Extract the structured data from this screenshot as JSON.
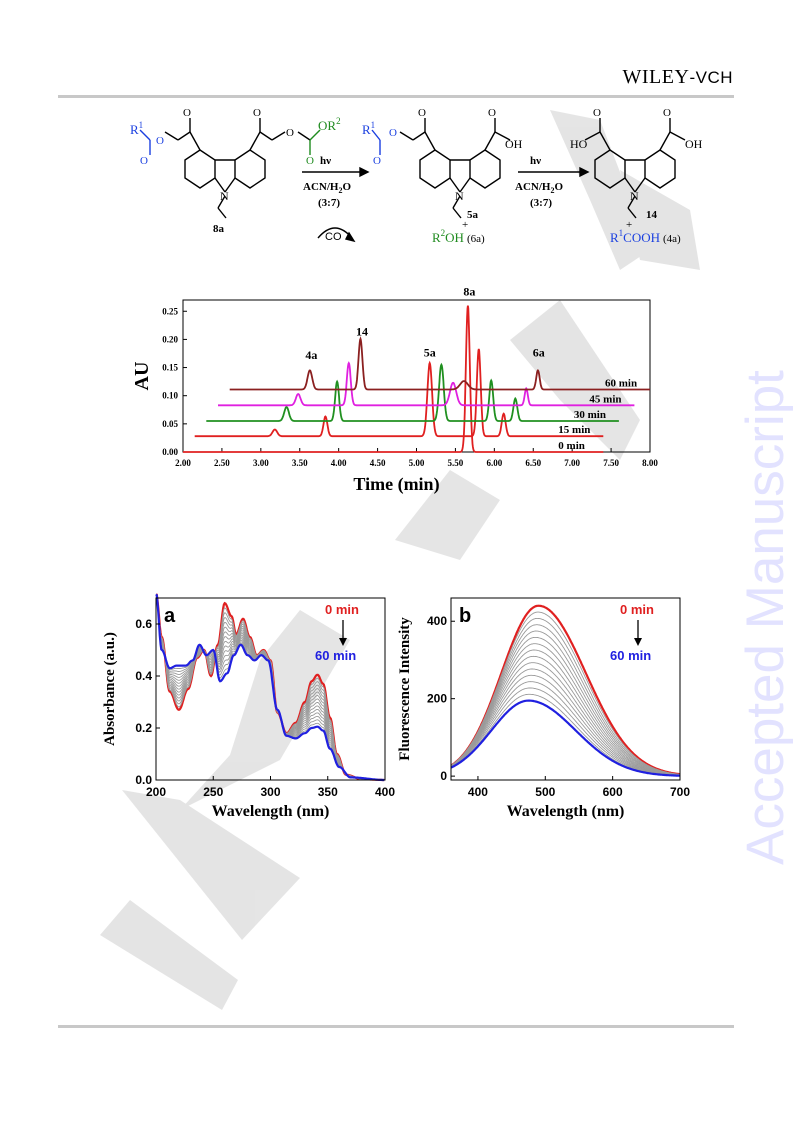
{
  "header": {
    "brand_main": "WILEY",
    "brand_sub": "-VCH"
  },
  "watermark": {
    "side_text": "Accepted Manuscript"
  },
  "scheme": {
    "compound_start": "8a",
    "compound_mid": "5a",
    "compound_end": "14",
    "r1": "R",
    "r1_sup": "1",
    "or2": "OR",
    "or2_sup": "2",
    "oh": "OH",
    "ho": "HO",
    "n_label": "N",
    "arrow1_top": "hν",
    "arrow1_solvent": "ACN/H",
    "arrow1_solvent_sub": "2",
    "arrow1_solvent_end": "O",
    "arrow1_ratio": "(3:7)",
    "co2": "CO",
    "co2_sub": "2",
    "byproduct1_r": "R",
    "byproduct1_sup": "2",
    "byproduct1": "OH",
    "byproduct1_id": "(6a)",
    "arrow2_top": "hν",
    "arrow2_solvent": "ACN/H",
    "arrow2_solvent_sub": "2",
    "arrow2_solvent_end": "O",
    "arrow2_ratio": "(3:7)",
    "byproduct2_r": "R",
    "byproduct2_sup": "1",
    "byproduct2": "COOH",
    "byproduct2_id": "(4a)",
    "plus": "+"
  },
  "chart_data": [
    {
      "type": "line",
      "ylabel": "AU",
      "xlabel": "Time (min)",
      "xlim": [
        2.0,
        8.0
      ],
      "ylim": [
        0.0,
        0.27
      ],
      "xticks": [
        "2.00",
        "2.50",
        "3.00",
        "3.50",
        "4.00",
        "4.50",
        "5.00",
        "5.50",
        "6.00",
        "6.50",
        "7.00",
        "7.50",
        "8.00"
      ],
      "yticks": [
        "0.00",
        "0.05",
        "0.10",
        "0.15",
        "0.20",
        "0.25"
      ],
      "peak_labels": [
        {
          "text": "4a",
          "x": 3.65,
          "y": 0.165
        },
        {
          "text": "14",
          "x": 4.3,
          "y": 0.207
        },
        {
          "text": "5a",
          "x": 5.17,
          "y": 0.17
        },
        {
          "text": "8a",
          "x": 5.68,
          "y": 0.278
        },
        {
          "text": "6a",
          "x": 6.57,
          "y": 0.17
        }
      ],
      "series": [
        {
          "name": "0 min",
          "color": "#e02020",
          "offset": 0.0,
          "x0": 2.0,
          "x1": 7.4,
          "peaks": [
            {
              "x": 5.66,
              "h": 0.26,
              "w": 0.025
            }
          ]
        },
        {
          "name": "15 min",
          "color": "#e02020",
          "offset": 0.028,
          "x0": 2.15,
          "x1": 7.4,
          "peaks": [
            {
              "x": 3.18,
              "h": 0.012,
              "w": 0.03
            },
            {
              "x": 3.83,
              "h": 0.035,
              "w": 0.025
            },
            {
              "x": 5.17,
              "h": 0.13,
              "w": 0.03
            },
            {
              "x": 5.8,
              "h": 0.155,
              "w": 0.025
            },
            {
              "x": 6.12,
              "h": 0.04,
              "w": 0.025
            }
          ]
        },
        {
          "name": "30 min",
          "color": "#209020",
          "offset": 0.055,
          "x0": 2.3,
          "x1": 7.6,
          "peaks": [
            {
              "x": 3.33,
              "h": 0.025,
              "w": 0.03
            },
            {
              "x": 3.98,
              "h": 0.07,
              "w": 0.025
            },
            {
              "x": 5.32,
              "h": 0.1,
              "w": 0.03
            },
            {
              "x": 5.96,
              "h": 0.072,
              "w": 0.025
            },
            {
              "x": 6.27,
              "h": 0.04,
              "w": 0.025
            }
          ]
        },
        {
          "name": "45 min",
          "color": "#e020e0",
          "offset": 0.083,
          "x0": 2.45,
          "x1": 7.8,
          "peaks": [
            {
              "x": 3.48,
              "h": 0.02,
              "w": 0.03
            },
            {
              "x": 4.13,
              "h": 0.075,
              "w": 0.025
            },
            {
              "x": 5.47,
              "h": 0.04,
              "w": 0.04
            },
            {
              "x": 6.41,
              "h": 0.03,
              "w": 0.02
            }
          ]
        },
        {
          "name": "60 min",
          "color": "#8b2020",
          "offset": 0.111,
          "x0": 2.6,
          "x1": 8.0,
          "peaks": [
            {
              "x": 3.63,
              "h": 0.034,
              "w": 0.03
            },
            {
              "x": 4.28,
              "h": 0.09,
              "w": 0.025
            },
            {
              "x": 5.61,
              "h": 0.015,
              "w": 0.05
            },
            {
              "x": 6.56,
              "h": 0.034,
              "w": 0.022
            }
          ]
        }
      ]
    },
    {
      "type": "line",
      "panel": "a",
      "xlabel": "Wavelength (nm)",
      "ylabel": "Absorbance (a.u.)",
      "xlim": [
        200,
        400
      ],
      "ylim": [
        0.0,
        0.7
      ],
      "xticks": [
        "200",
        "250",
        "300",
        "350",
        "400"
      ],
      "yticks": [
        "0.0",
        "0.2",
        "0.4",
        "0.6"
      ],
      "legend_start": "0 min",
      "legend_end": "60 min",
      "start_color": "#e02020",
      "end_color": "#2020e0",
      "n_intermediate": 14,
      "start_curve": [
        [
          200,
          0.72
        ],
        [
          205,
          0.55
        ],
        [
          212,
          0.34
        ],
        [
          220,
          0.27
        ],
        [
          228,
          0.35
        ],
        [
          236,
          0.47
        ],
        [
          242,
          0.5
        ],
        [
          248,
          0.4
        ],
        [
          254,
          0.52
        ],
        [
          260,
          0.68
        ],
        [
          266,
          0.63
        ],
        [
          270,
          0.56
        ],
        [
          276,
          0.62
        ],
        [
          282,
          0.55
        ],
        [
          288,
          0.48
        ],
        [
          294,
          0.5
        ],
        [
          300,
          0.46
        ],
        [
          306,
          0.26
        ],
        [
          314,
          0.18
        ],
        [
          322,
          0.22
        ],
        [
          330,
          0.3
        ],
        [
          336,
          0.38
        ],
        [
          341,
          0.405
        ],
        [
          346,
          0.37
        ],
        [
          352,
          0.24
        ],
        [
          358,
          0.1
        ],
        [
          366,
          0.02
        ],
        [
          380,
          0.003
        ],
        [
          400,
          0.0
        ]
      ],
      "end_curve": [
        [
          200,
          0.72
        ],
        [
          205,
          0.5
        ],
        [
          212,
          0.43
        ],
        [
          218,
          0.44
        ],
        [
          226,
          0.44
        ],
        [
          232,
          0.46
        ],
        [
          238,
          0.52
        ],
        [
          244,
          0.48
        ],
        [
          250,
          0.5
        ],
        [
          256,
          0.38
        ],
        [
          262,
          0.41
        ],
        [
          268,
          0.48
        ],
        [
          274,
          0.52
        ],
        [
          280,
          0.48
        ],
        [
          286,
          0.46
        ],
        [
          292,
          0.48
        ],
        [
          298,
          0.46
        ],
        [
          306,
          0.27
        ],
        [
          314,
          0.17
        ],
        [
          322,
          0.16
        ],
        [
          330,
          0.18
        ],
        [
          336,
          0.2
        ],
        [
          341,
          0.205
        ],
        [
          346,
          0.19
        ],
        [
          352,
          0.12
        ],
        [
          360,
          0.05
        ],
        [
          370,
          0.01
        ],
        [
          400,
          0.0
        ]
      ]
    },
    {
      "type": "line",
      "panel": "b",
      "xlabel": "Wavelength (nm)",
      "ylabel": "Fluorescence Intensity",
      "xlim": [
        360,
        700
      ],
      "ylim": [
        -10,
        460
      ],
      "xticks": [
        "400",
        "500",
        "600",
        "700"
      ],
      "yticks": [
        "0",
        "200",
        "400"
      ],
      "legend_start": "0 min",
      "legend_end": "60 min",
      "start_color": "#e02020",
      "end_color": "#2020e0",
      "n_intermediate": 14,
      "start_peak": {
        "x": 490,
        "y": 440
      },
      "end_peak": {
        "x": 475,
        "y": 195
      }
    }
  ]
}
